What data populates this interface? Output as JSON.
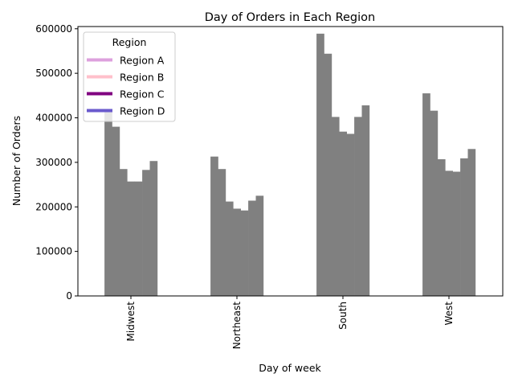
{
  "chart_data": {
    "type": "bar",
    "title": "Day of Orders in Each Region",
    "xlabel": "Day of week",
    "ylabel": "Number of Orders",
    "categories": [
      "Midwest",
      "Northeast",
      "South",
      "West"
    ],
    "bar_values": [
      [
        417000,
        380000,
        285000,
        257000,
        257000,
        283000,
        303000
      ],
      [
        313000,
        285000,
        212000,
        196000,
        192000,
        214000,
        225000
      ],
      [
        589000,
        544000,
        402000,
        369000,
        364000,
        402000,
        428000
      ],
      [
        455000,
        416000,
        307000,
        281000,
        279000,
        309000,
        330000
      ]
    ],
    "bar_color": "#808080",
    "ylim": [
      0,
      605000
    ],
    "yticks": [
      0,
      100000,
      200000,
      300000,
      400000,
      500000,
      600000
    ],
    "ytick_labels": [
      "0",
      "100000",
      "200000",
      "300000",
      "400000",
      "500000",
      "600000"
    ],
    "grid": false,
    "legend": {
      "title": "Region",
      "placement": "top-left",
      "entries": [
        {
          "label": "Region A",
          "color": "#DDA0DD"
        },
        {
          "label": "Region B",
          "color": "#FFC0CB"
        },
        {
          "label": "Region C",
          "color": "#800080"
        },
        {
          "label": "Region D",
          "color": "#6A5ACD"
        }
      ]
    }
  }
}
